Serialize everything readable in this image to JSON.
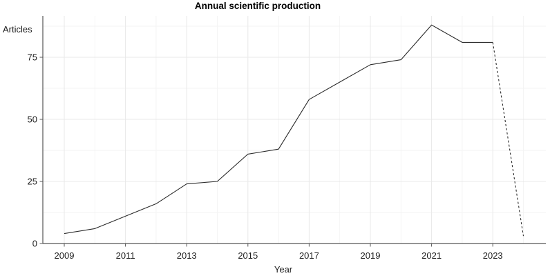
{
  "chart_data": {
    "type": "line",
    "title": "Annual scientific production",
    "xlabel": "Year",
    "ylabel": "Articles",
    "x": [
      2009,
      2010,
      2011,
      2012,
      2013,
      2014,
      2015,
      2016,
      2017,
      2018,
      2019,
      2020,
      2021,
      2022,
      2023,
      2024
    ],
    "values": [
      4,
      6,
      11,
      16,
      24,
      25,
      36,
      38,
      58,
      65,
      72,
      74,
      88,
      81,
      81,
      3
    ],
    "x_ticks": [
      2009,
      2011,
      2013,
      2015,
      2017,
      2019,
      2021,
      2023
    ],
    "y_ticks": [
      0,
      25,
      50,
      75
    ],
    "xlim": [
      2008.3,
      2024.85
    ],
    "ylim": [
      0,
      92
    ],
    "grid": true,
    "legend_position": "none",
    "last_segment_dashed": true,
    "line_color": "#2a2a2a"
  },
  "colors": {
    "background": "#ffffff",
    "axis": "#555555",
    "grid_major": "#e8e8e8",
    "grid_minor": "#f3f3f3",
    "tick_text": "#1c1c1c",
    "title_text": "#000000"
  }
}
